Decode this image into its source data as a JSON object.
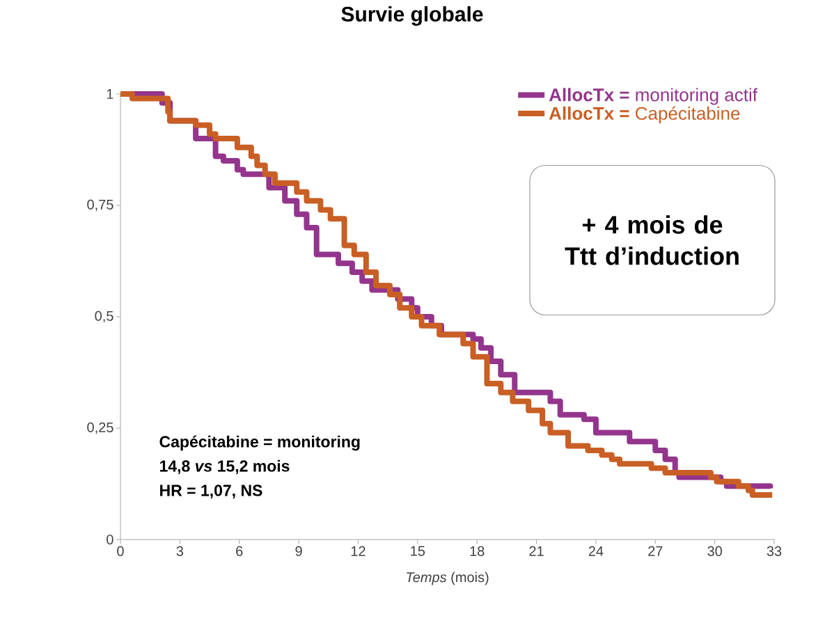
{
  "chart_data": {
    "type": "step",
    "title": "Survie globale",
    "xlabel": "*Temps* (mois)",
    "xlim": [
      0,
      33
    ],
    "xticks": [
      0,
      3,
      6,
      9,
      12,
      15,
      18,
      21,
      24,
      27,
      30,
      33
    ],
    "ylim": [
      0,
      1
    ],
    "yticks": [
      {
        "value": 0,
        "label": "0"
      },
      {
        "value": 0.25,
        "label": "0,25"
      },
      {
        "value": 0.5,
        "label": "0,5"
      },
      {
        "value": 0.75,
        "label": "0,75"
      },
      {
        "value": 1,
        "label": "1"
      }
    ],
    "grid": false,
    "legend": "top right",
    "marker": "none",
    "line_style": "solid",
    "series": [
      {
        "name": "**AllocTx =** monitoring actif",
        "color": "#93358c",
        "x": [
          0,
          2.1,
          2.5,
          3.8,
          4.8,
          5.2,
          5.9,
          6.2,
          7.5,
          8.3,
          8.9,
          9.4,
          9.9,
          11,
          11.7,
          12.2,
          12.7,
          14,
          14.7,
          15,
          15.7,
          16.2,
          17.8,
          18.2,
          18.7,
          19.2,
          19.9,
          21.7,
          22.2,
          23.4,
          24,
          25.7,
          27,
          27.5,
          28,
          28.2,
          30.3,
          30.6,
          32.8
        ],
        "values": [
          1.0,
          0.98,
          0.94,
          0.9,
          0.86,
          0.85,
          0.83,
          0.82,
          0.79,
          0.76,
          0.73,
          0.7,
          0.64,
          0.62,
          0.6,
          0.58,
          0.56,
          0.54,
          0.52,
          0.5,
          0.48,
          0.46,
          0.45,
          0.43,
          0.4,
          0.37,
          0.33,
          0.31,
          0.28,
          0.27,
          0.24,
          0.22,
          0.2,
          0.18,
          0.15,
          0.14,
          0.13,
          0.12,
          0.115
        ]
      },
      {
        "name": "**AllocTx =** Capécitabine",
        "color": "#c95f24",
        "x": [
          0,
          0.6,
          2.4,
          2.5,
          3.8,
          4.5,
          4.8,
          5.9,
          6.6,
          6.9,
          7.3,
          7.8,
          8.9,
          9.4,
          10.1,
          10.6,
          11.3,
          11.8,
          12.4,
          12.9,
          13.6,
          14.1,
          14.7,
          15.2,
          16.1,
          17.3,
          17.8,
          18.5,
          19.2,
          19.8,
          20.6,
          21.3,
          21.7,
          22.6,
          23.6,
          24.3,
          24.8,
          25.2,
          26.8,
          27.5,
          29.8,
          30.1,
          31.2,
          31.7,
          31.9,
          32.9
        ],
        "values": [
          1.0,
          0.99,
          0.96,
          0.94,
          0.93,
          0.91,
          0.9,
          0.88,
          0.86,
          0.84,
          0.82,
          0.8,
          0.78,
          0.76,
          0.74,
          0.72,
          0.66,
          0.64,
          0.6,
          0.57,
          0.55,
          0.52,
          0.5,
          0.48,
          0.46,
          0.44,
          0.41,
          0.35,
          0.33,
          0.31,
          0.29,
          0.26,
          0.24,
          0.21,
          0.2,
          0.19,
          0.18,
          0.17,
          0.16,
          0.15,
          0.14,
          0.13,
          0.12,
          0.11,
          0.1,
          0.1
        ]
      }
    ],
    "annotations": [
      "+ 4 mois de Ttt d’induction",
      "Capécitabine = monitoring",
      "14,8 *vs* 15,2 mois",
      "HR = 1,07, NS"
    ]
  }
}
